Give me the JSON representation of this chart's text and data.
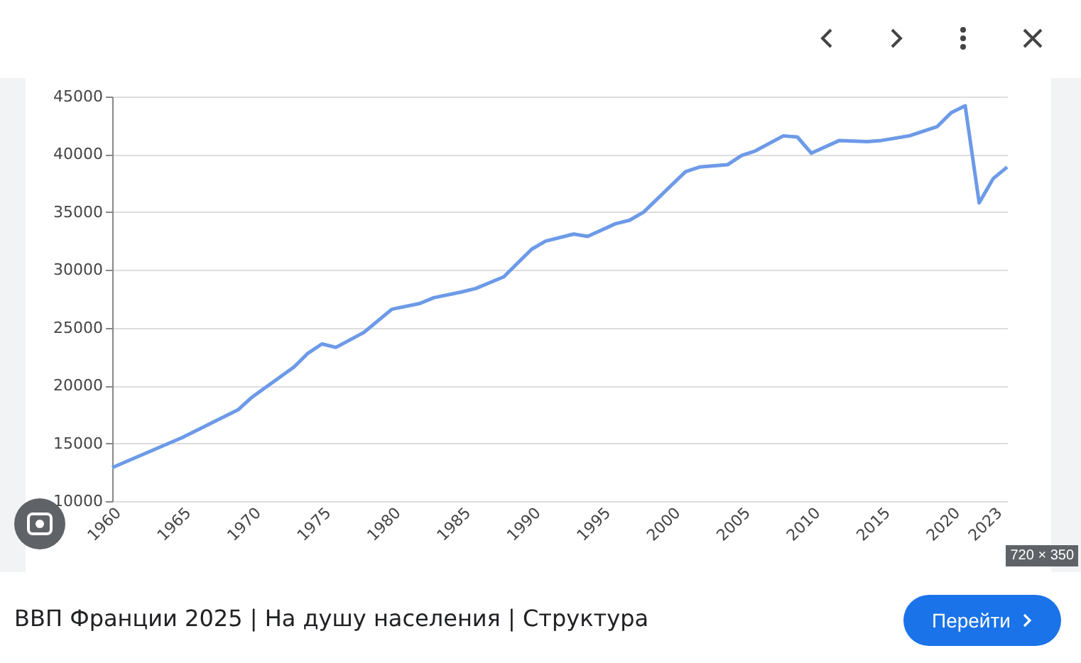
{
  "chart_data": {
    "type": "line",
    "title": "ВВП Франции 2025 | На душу населения | Структура",
    "annotations": [
      "Перейти",
      "720 × 350"
    ],
    "x": [
      1960,
      1965,
      1969,
      1970,
      1973,
      1974,
      1975,
      1976,
      1978,
      1980,
      1982,
      1983,
      1985,
      1986,
      1988,
      1990,
      1991,
      1993,
      1994,
      1996,
      1997,
      1998,
      2001,
      2002,
      2004,
      2005,
      2006,
      2008,
      2009,
      2010,
      2012,
      2014,
      2015,
      2017,
      2019,
      2020,
      2021,
      2022,
      2023,
      2024
    ],
    "series": [
      {
        "color": "#6d9ae8",
        "values": [
          12900,
          15500,
          17900,
          19000,
          21600,
          22800,
          23600,
          23300,
          24600,
          26600,
          27100,
          27600,
          28100,
          28400,
          29400,
          31800,
          32500,
          33100,
          32900,
          34000,
          34300,
          35000,
          38500,
          38900,
          39100,
          39900,
          40300,
          41600,
          41500,
          40100,
          41200,
          41100,
          41200,
          41600,
          42400,
          43600,
          44200,
          35800,
          37900,
          38900
        ]
      }
    ],
    "xlim": [
      1960,
      2024
    ],
    "xticks": [
      1960,
      1965,
      1970,
      1975,
      1980,
      1985,
      1990,
      1995,
      2000,
      2005,
      2010,
      2015,
      2020,
      2023
    ],
    "ylim": [
      10000,
      45000
    ],
    "yticks": [
      10000,
      15000,
      20000,
      25000,
      30000,
      35000,
      40000,
      45000
    ],
    "grid": "y",
    "marker": "none",
    "line_style": "solid"
  }
}
